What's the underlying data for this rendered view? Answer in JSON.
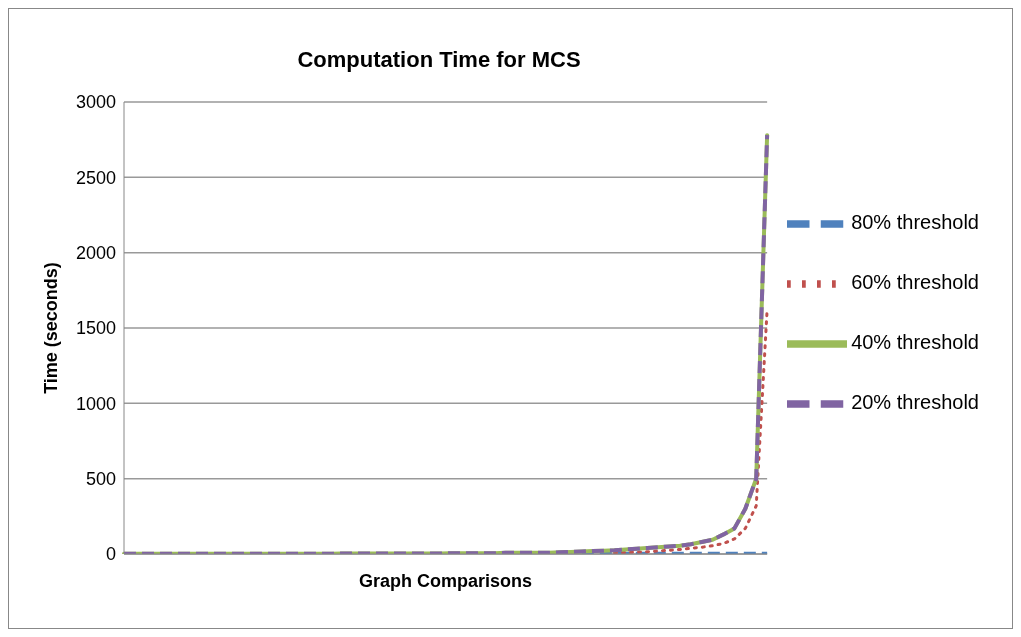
{
  "chart_data": {
    "type": "line",
    "title": "Computation Time for MCS",
    "xlabel": "Graph Comparisons",
    "ylabel": "Time (seconds)",
    "categories": [
      null,
      null,
      null,
      null,
      null,
      null,
      null,
      null,
      null,
      null,
      null,
      null,
      null,
      null,
      null,
      null,
      null,
      null,
      null,
      null,
      null,
      null,
      null,
      null,
      null,
      null,
      null,
      null,
      null,
      null,
      null,
      null,
      null,
      null,
      null,
      null,
      null,
      null,
      null,
      null,
      null,
      null,
      null,
      null,
      null,
      null,
      null,
      null,
      null,
      null,
      null,
      null,
      null,
      null,
      null,
      null,
      null,
      null,
      null,
      null
    ],
    "series": [
      {
        "name": "80% threshold",
        "color": "#4f81bd",
        "line_style": "dashed",
        "values": [
          null,
          null,
          null,
          null,
          null,
          null,
          null,
          null,
          null,
          null,
          null,
          null,
          null,
          null,
          null,
          null,
          null,
          null,
          null,
          null,
          null,
          null,
          null,
          null,
          null,
          null,
          null,
          null,
          null,
          null,
          null,
          null,
          null,
          null,
          null,
          null,
          null,
          null,
          null,
          null,
          null,
          null,
          1,
          1,
          1,
          1,
          1,
          1,
          1,
          1,
          2,
          2,
          2,
          2,
          2,
          2,
          2,
          2,
          2,
          2
        ]
      },
      {
        "name": "60% threshold",
        "color": "#c0504d",
        "line_style": "dotted",
        "values": [
          null,
          null,
          null,
          null,
          null,
          null,
          null,
          null,
          null,
          null,
          null,
          null,
          null,
          null,
          null,
          null,
          null,
          null,
          null,
          null,
          null,
          null,
          null,
          null,
          null,
          null,
          null,
          null,
          null,
          null,
          null,
          null,
          null,
          null,
          null,
          null,
          null,
          null,
          null,
          null,
          null,
          null,
          null,
          null,
          null,
          8,
          10,
          12,
          15,
          20,
          25,
          30,
          38,
          45,
          55,
          70,
          100,
          170,
          320,
          1620
        ]
      },
      {
        "name": "40% threshold",
        "color": "#9bbb59",
        "line_style": "solid",
        "values": [
          1,
          1,
          1,
          1,
          1,
          1,
          1,
          1,
          1,
          1,
          2,
          2,
          2,
          2,
          2,
          2,
          2,
          2,
          2,
          2,
          3,
          3,
          3,
          3,
          3,
          3,
          3,
          3,
          3,
          3,
          5,
          5,
          5,
          5,
          5,
          8,
          8,
          8,
          8,
          8,
          12,
          14,
          17,
          20,
          22,
          25,
          30,
          35,
          40,
          45,
          50,
          55,
          65,
          80,
          95,
          130,
          170,
          300,
          500,
          2780
        ]
      },
      {
        "name": "20% threshold",
        "color": "#8064a2",
        "line_style": "dashed",
        "values": [
          1,
          1,
          1,
          1,
          1,
          1,
          1,
          1,
          1,
          1,
          2,
          2,
          2,
          2,
          2,
          2,
          2,
          2,
          2,
          2,
          3,
          3,
          3,
          3,
          3,
          3,
          3,
          3,
          3,
          3,
          5,
          5,
          5,
          5,
          5,
          8,
          8,
          8,
          8,
          8,
          12,
          14,
          17,
          20,
          22,
          25,
          30,
          35,
          40,
          45,
          50,
          55,
          65,
          80,
          95,
          130,
          170,
          300,
          500,
          2780
        ]
      }
    ],
    "ylim": [
      0,
      3000
    ],
    "yticks": [
      0,
      500,
      1000,
      1500,
      2000,
      2500,
      3000
    ],
    "grid": "y",
    "legend": "right",
    "marker": "none"
  }
}
